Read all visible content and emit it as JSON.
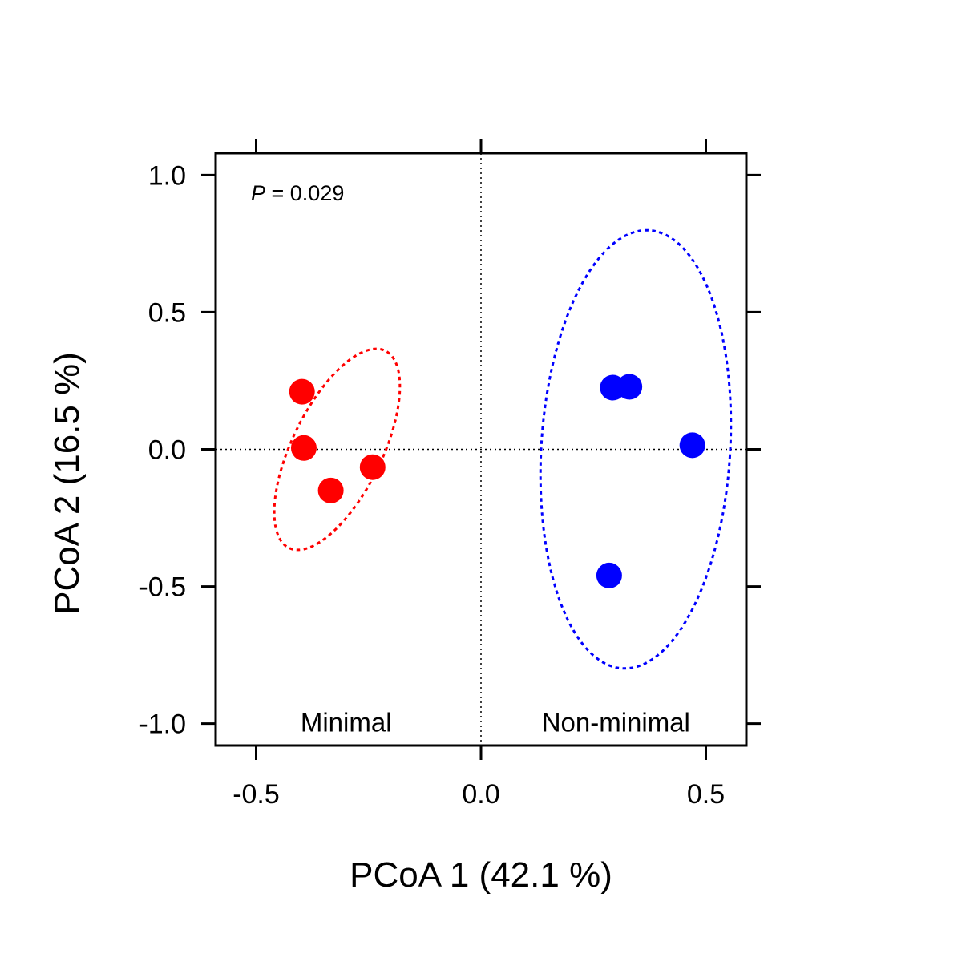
{
  "chart_data": {
    "type": "scatter",
    "xlabel": "PCoA 1 (42.1 %)",
    "ylabel": "PCoA 2 (16.5 %)",
    "xlim": [
      -0.59,
      0.59
    ],
    "ylim": [
      -1.08,
      1.08
    ],
    "x_ticks": [
      -0.5,
      0.0,
      0.5
    ],
    "x_tick_labels": [
      "-0.5",
      "0.0",
      "0.5"
    ],
    "y_ticks": [
      -1.0,
      -0.5,
      0.0,
      0.5,
      1.0
    ],
    "y_tick_labels": [
      "-1.0",
      "-0.5",
      "0.0",
      "0.5",
      "1.0"
    ],
    "reference_lines": {
      "x": 0,
      "y": 0,
      "style": "dotted"
    },
    "annotation": {
      "italic": "P",
      "rest": " = 0.029"
    },
    "groups": [
      {
        "label": "Minimal",
        "label_anchor": [
          -0.3,
          -1.0
        ],
        "color": "#ff0000",
        "points": [
          {
            "x": -0.398,
            "y": 0.21
          },
          {
            "x": -0.394,
            "y": 0.005
          },
          {
            "x": -0.334,
            "y": -0.15
          },
          {
            "x": -0.241,
            "y": -0.065
          }
        ],
        "ellipse": {
          "cx": -0.32,
          "cy": 0.0,
          "rx": 0.1,
          "ry": 0.4,
          "angle_deg": 26
        }
      },
      {
        "label": "Non-minimal",
        "label_anchor": [
          0.3,
          -1.0
        ],
        "color": "#0000ff",
        "points": [
          {
            "x": 0.293,
            "y": 0.225
          },
          {
            "x": 0.33,
            "y": 0.228
          },
          {
            "x": 0.47,
            "y": 0.015
          },
          {
            "x": 0.285,
            "y": -0.46
          }
        ],
        "ellipse": {
          "cx": 0.344,
          "cy": 0.0,
          "rx": 0.21,
          "ry": 0.8,
          "angle_deg": 3.5
        }
      }
    ]
  }
}
